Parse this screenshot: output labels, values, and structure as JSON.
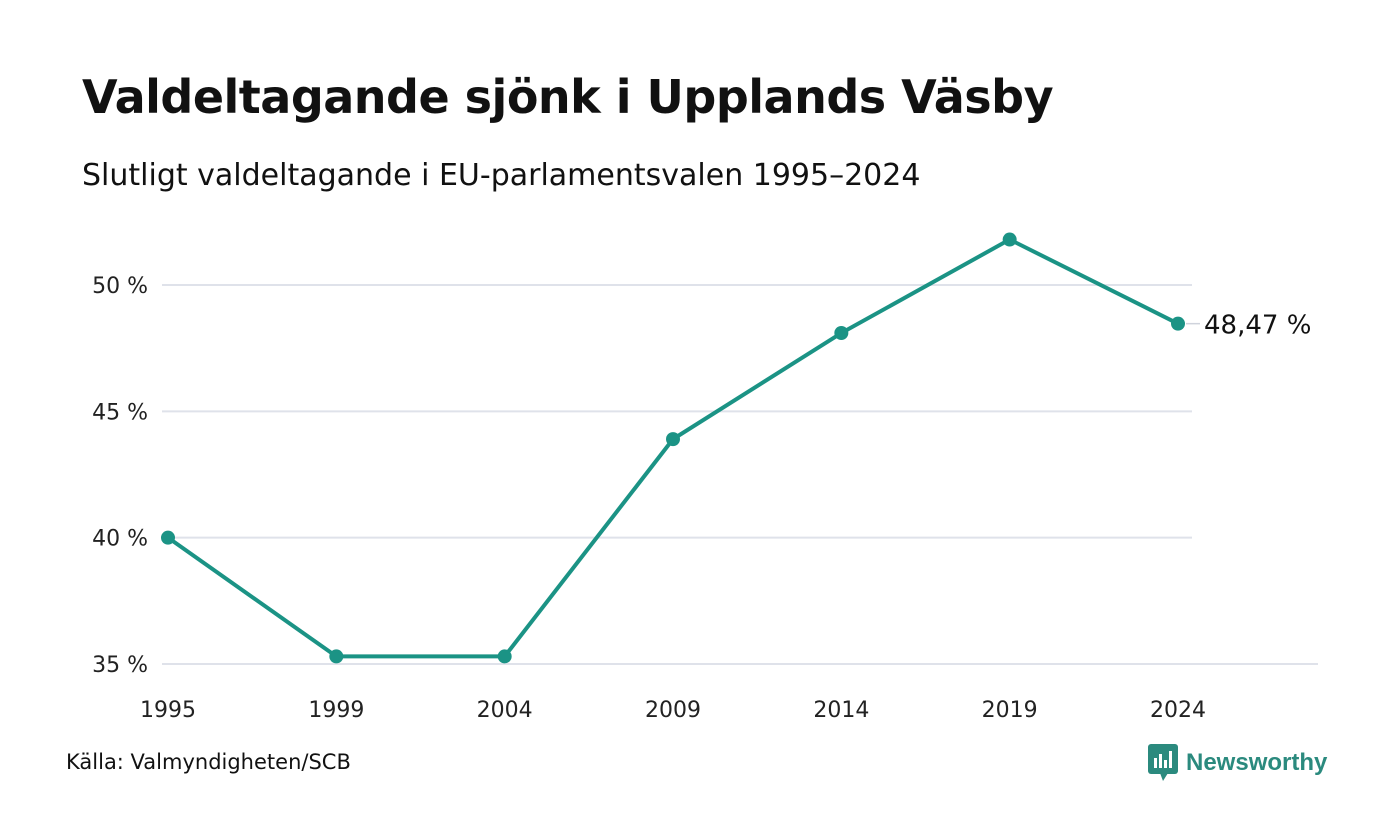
{
  "header": {
    "title": "Valdeltagande sjönk i Upplands Väsby",
    "subtitle": "Slutligt valdeltagande i EU-parlamentsvalen 1995–2024"
  },
  "footer": {
    "source": "Källa: Valmyndigheten/SCB",
    "brand": "Newsworthy",
    "brand_icon": "chart-bubble-icon"
  },
  "colors": {
    "line": "#1b9385",
    "grid": "#dfe2ea",
    "brand": "#2b8a7e"
  },
  "chart_data": {
    "type": "line",
    "title": "Valdeltagande sjönk i Upplands Väsby",
    "subtitle": "Slutligt valdeltagande i EU-parlamentsvalen 1995–2024",
    "xlabel": "",
    "ylabel": "",
    "categories": [
      "1995",
      "1999",
      "2004",
      "2009",
      "2014",
      "2019",
      "2024"
    ],
    "series": [
      {
        "values": [
          40.0,
          35.3,
          35.3,
          43.9,
          48.1,
          51.8,
          48.47
        ]
      }
    ],
    "yticks": [
      35,
      40,
      45,
      50
    ],
    "ytick_labels": [
      "35 %",
      "40 %",
      "45 %",
      "50 %"
    ],
    "ylim": [
      35,
      52
    ],
    "grid": true,
    "end_label": "48,47 %"
  }
}
